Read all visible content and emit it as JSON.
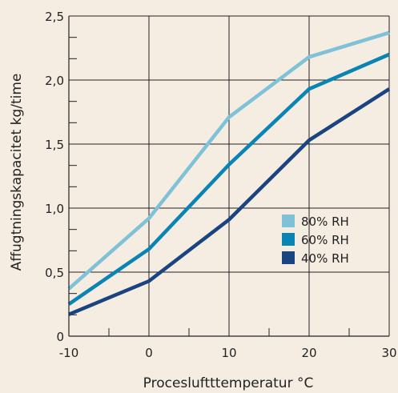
{
  "chart_data": {
    "type": "line",
    "xlabel": "Procesluftttemperatur °C",
    "ylabel": "Affugtningskapacitet kg/time",
    "x": [
      -10,
      0,
      10,
      20,
      30
    ],
    "xlim": [
      -10,
      30
    ],
    "ylim": [
      0,
      2.5
    ],
    "x_ticks": [
      "-10",
      "0",
      "10",
      "20",
      "30"
    ],
    "y_ticks": [
      "0",
      "0,5",
      "1,0",
      "1,5",
      "2,0",
      "2,5"
    ],
    "grid": true,
    "legend_position": "right",
    "series": [
      {
        "name": "80% RH",
        "color": "#7fc2d8",
        "values": [
          0.37,
          0.92,
          1.71,
          2.18,
          2.37
        ]
      },
      {
        "name": "60% RH",
        "color": "#0a84b4",
        "values": [
          0.25,
          0.68,
          1.34,
          1.93,
          2.2
        ]
      },
      {
        "name": "40% RH",
        "color": "#1a4480",
        "values": [
          0.17,
          0.43,
          0.91,
          1.53,
          1.93
        ]
      }
    ]
  }
}
